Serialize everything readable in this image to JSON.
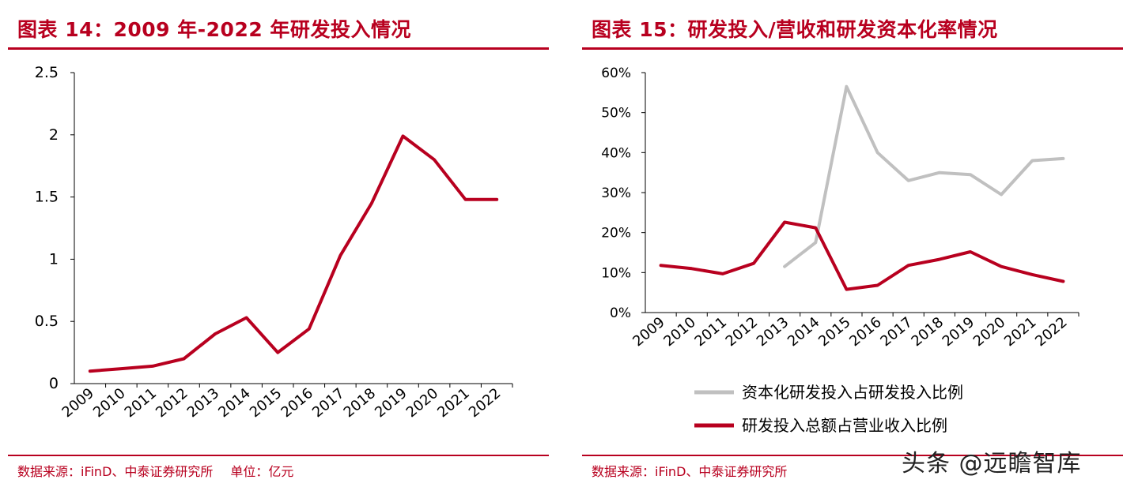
{
  "left": {
    "title": "图表 14：2009 年-2022 年研发投入情况",
    "source": "数据来源：iFinD、中泰证券研究所",
    "unit": "单位：亿元"
  },
  "right": {
    "title": "图表 15：研发投入/营收和研发资本化率情况",
    "source": "数据来源：iFinD、中泰证券研究所"
  },
  "watermark": "头条 @远瞻智库",
  "colors": {
    "brand_red": "#b8001f",
    "series_gray": "#c0c0c0"
  },
  "chart_data": [
    {
      "type": "line",
      "title": "图表 14：2009 年-2022 年研发投入情况",
      "categories": [
        "2009",
        "2010",
        "2011",
        "2012",
        "2013",
        "2014",
        "2015",
        "2016",
        "2017",
        "2018",
        "2019",
        "2020",
        "2021",
        "2022"
      ],
      "yticks": [
        "0",
        "0.5",
        "1",
        "1.5",
        "2",
        "2.5"
      ],
      "ylim": [
        0,
        2.5
      ],
      "grid": false,
      "series": [
        {
          "color": "#b8001f",
          "values": [
            0.1,
            0.12,
            0.14,
            0.2,
            0.4,
            0.53,
            0.25,
            0.44,
            1.03,
            1.45,
            1.99,
            1.8,
            1.48,
            1.48
          ]
        }
      ]
    },
    {
      "type": "line",
      "title": "图表 15：研发投入/营收和研发资本化率情况",
      "categories": [
        "2009",
        "2010",
        "2011",
        "2012",
        "2013",
        "2014",
        "2015",
        "2016",
        "2017",
        "2018",
        "2019",
        "2020",
        "2021",
        "2022"
      ],
      "yticks": [
        "0%",
        "10%",
        "20%",
        "30%",
        "40%",
        "50%",
        "60%"
      ],
      "ylim": [
        0,
        60
      ],
      "grid": false,
      "legend_position": "bottom",
      "series": [
        {
          "name": "资本化研发投入占研发投入比例",
          "color": "#c0c0c0",
          "values": [
            null,
            null,
            null,
            null,
            11.5,
            17.5,
            56.5,
            40.0,
            33.0,
            35.0,
            34.5,
            29.5,
            38.0,
            38.5
          ]
        },
        {
          "name": "研发投入总额占营业收入比例",
          "color": "#b8001f",
          "values": [
            11.8,
            11.0,
            9.7,
            12.3,
            22.6,
            21.2,
            5.8,
            6.8,
            11.8,
            13.3,
            15.2,
            11.5,
            9.5,
            7.8
          ]
        }
      ]
    }
  ]
}
